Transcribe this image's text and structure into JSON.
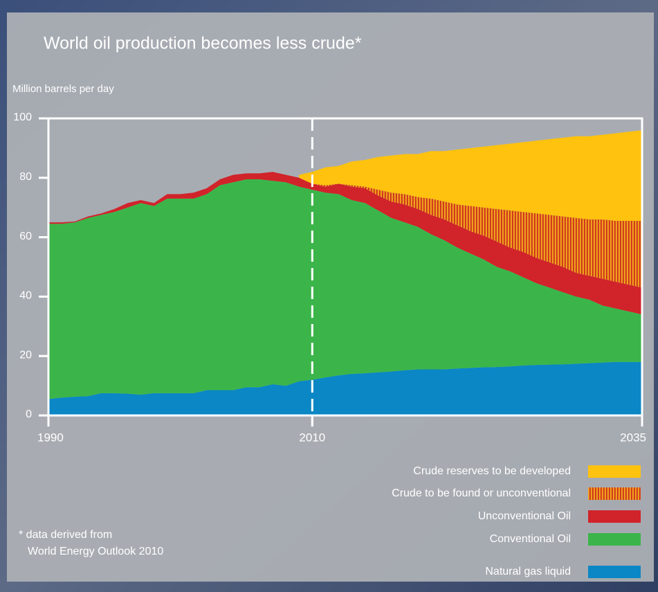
{
  "chart_data": {
    "type": "stacked-area",
    "title": "World oil production becomes less crude*",
    "y_label": "Million barrels per day",
    "footnote": [
      "* data derived from",
      "World Energy Outlook 2010"
    ],
    "x": [
      1990,
      1991,
      1992,
      1993,
      1994,
      1995,
      1996,
      1997,
      1998,
      1999,
      2000,
      2001,
      2002,
      2003,
      2004,
      2005,
      2006,
      2007,
      2008,
      2009,
      2010,
      2011,
      2012,
      2013,
      2014,
      2015,
      2016,
      2017,
      2018,
      2019,
      2020,
      2021,
      2022,
      2023,
      2024,
      2025,
      2026,
      2027,
      2028,
      2029,
      2030,
      2031,
      2032,
      2033,
      2034,
      2035
    ],
    "xlim": [
      1990,
      2035
    ],
    "xticks": [
      1990,
      2010,
      2035
    ],
    "ylim": [
      0,
      100
    ],
    "yticks": [
      0,
      20,
      40,
      60,
      80,
      100
    ],
    "projection_start": 2010,
    "series": [
      {
        "name": "Natural gas liquid",
        "color": "#0b87c5",
        "values": [
          5.5,
          6,
          6.3,
          6.5,
          7.5,
          7.5,
          7.3,
          7,
          7.5,
          7.5,
          7.5,
          7.5,
          8.5,
          8.5,
          8.5,
          9.5,
          9.5,
          10.5,
          10,
          11.5,
          12,
          12.8,
          13.5,
          14,
          14.2,
          14.5,
          14.8,
          15.2,
          15.5,
          15.5,
          15.5,
          15.8,
          16,
          16.2,
          16.3,
          16.5,
          16.8,
          17,
          17.1,
          17.2,
          17.4,
          17.6,
          17.8,
          18,
          18,
          18
        ]
      },
      {
        "name": "Conventional Oil",
        "color": "#3bb54a",
        "values": [
          59,
          58.5,
          58.7,
          60,
          60,
          61,
          62.7,
          64.5,
          63,
          65.5,
          65.5,
          65.5,
          66,
          69,
          70,
          70,
          70,
          68.5,
          68.5,
          65.5,
          64,
          62.2,
          61,
          58.5,
          57.3,
          54.5,
          51.7,
          49.8,
          48,
          45.5,
          43.5,
          40.7,
          38.5,
          36.3,
          33.7,
          32,
          29.7,
          27.5,
          25.9,
          24.3,
          22.6,
          21.4,
          19.2,
          18,
          17,
          16
        ]
      },
      {
        "name": "Unconventional Oil",
        "color": "#d1232a",
        "values": [
          0.5,
          0.5,
          0.3,
          0.5,
          0.5,
          1,
          1.5,
          1,
          1,
          1.5,
          1.5,
          2,
          2,
          2,
          2.5,
          2,
          2,
          3,
          2.5,
          3,
          2,
          2,
          3.5,
          4.5,
          5,
          5,
          5.5,
          6,
          6,
          6.5,
          7,
          7.5,
          7.5,
          8,
          8.5,
          8,
          8.5,
          8.5,
          8.5,
          8.5,
          8,
          8,
          9,
          9,
          9,
          9
        ]
      },
      {
        "name": "Crude to be found or unconventional",
        "color": "#f0a01c",
        "hatch_color": "#c9231f",
        "values": [
          null,
          null,
          null,
          null,
          null,
          null,
          null,
          null,
          null,
          null,
          null,
          null,
          null,
          null,
          null,
          null,
          null,
          null,
          null,
          null,
          0,
          0.5,
          0,
          0.5,
          0.5,
          2,
          3,
          3.5,
          4,
          5.5,
          6,
          7,
          8.5,
          9.5,
          11,
          12.5,
          13.5,
          15,
          16,
          17,
          18.5,
          19,
          20,
          20.5,
          21.5,
          22.5
        ]
      },
      {
        "name": "Crude reserves to be developed",
        "color": "#ffc20e",
        "values": [
          null,
          null,
          null,
          null,
          null,
          null,
          null,
          null,
          null,
          null,
          null,
          null,
          null,
          null,
          null,
          null,
          null,
          null,
          null,
          1,
          4,
          6,
          6,
          8,
          9,
          11,
          12.5,
          13.5,
          14.5,
          16,
          17,
          18.5,
          19.5,
          20.5,
          21.5,
          22.5,
          23.5,
          24.5,
          25.5,
          26.5,
          27.5,
          28,
          28.5,
          29.5,
          30,
          30.5
        ]
      }
    ]
  }
}
